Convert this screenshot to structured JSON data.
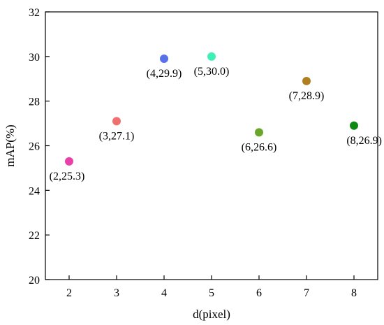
{
  "chart_data": {
    "type": "scatter",
    "title": "",
    "xlabel": "d(pixel)",
    "ylabel": "mAP(%)",
    "xlim": [
      1.5,
      8.5
    ],
    "ylim": [
      20,
      32
    ],
    "xticks": [
      2,
      3,
      4,
      5,
      6,
      7,
      8
    ],
    "yticks": [
      20,
      22,
      24,
      26,
      28,
      30,
      32
    ],
    "xtick_labels": [
      "2",
      "3",
      "4",
      "5",
      "6",
      "7",
      "8"
    ],
    "ytick_labels": [
      "20",
      "22",
      "24",
      "26",
      "28",
      "30",
      "32"
    ],
    "grid": false,
    "legend": "none",
    "points": [
      {
        "x": 2,
        "y": 25.3,
        "label": "(2,25.3)",
        "color": "#e83fa8"
      },
      {
        "x": 3,
        "y": 27.1,
        "label": "(3,27.1)",
        "color": "#f07070"
      },
      {
        "x": 4,
        "y": 29.9,
        "label": "(4,29.9)",
        "color": "#5a70e8"
      },
      {
        "x": 5,
        "y": 30.0,
        "label": "(5,30.0)",
        "color": "#3ef0b8"
      },
      {
        "x": 6,
        "y": 26.6,
        "label": "(6,26.6)",
        "color": "#6aa62a"
      },
      {
        "x": 7,
        "y": 28.9,
        "label": "(7,28.9)",
        "color": "#b07f22"
      },
      {
        "x": 8,
        "y": 26.9,
        "label": "(8,26.9)",
        "color": "#0e8a14"
      }
    ]
  }
}
